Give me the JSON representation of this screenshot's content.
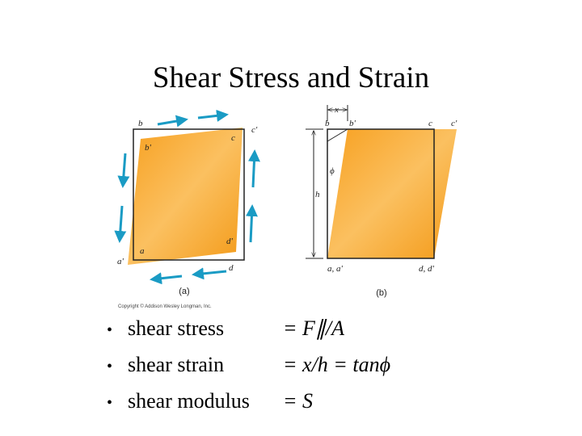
{
  "title": "Shear Stress and Strain",
  "figure_a": {
    "labels": {
      "b": "b",
      "c_prime": "c'",
      "c": "c",
      "b_prime": "b'",
      "a": "a",
      "d_prime": "d'",
      "a_prime": "a'",
      "d": "d"
    },
    "caption": "(a)",
    "copyright": "Copyright © Addison Wesley Longman, Inc."
  },
  "figure_b": {
    "labels": {
      "x": "x",
      "b": "b",
      "b_prime": "b'",
      "c": "c",
      "c_prime": "c'",
      "phi": "ϕ",
      "h": "h",
      "a": "a, a'",
      "d": "d, d'"
    },
    "caption": "(b)"
  },
  "bullets": [
    {
      "marker": "•",
      "term": "shear stress",
      "formula": "= F∥/A"
    },
    {
      "marker": "•",
      "term": "shear strain",
      "formula": "=  x/h = tanϕ"
    },
    {
      "marker": "•",
      "term": "shear modulus",
      "formula": "=  S"
    }
  ]
}
